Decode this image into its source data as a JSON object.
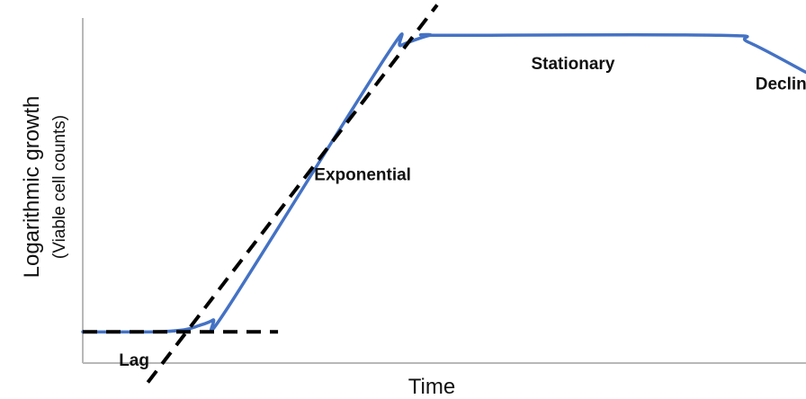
{
  "chart_data": {
    "type": "line",
    "xlabel": "Time",
    "ylabel": "Logarithmic growth",
    "ylabel_sub": "(Viable cell counts)",
    "grid": false,
    "legend": "none",
    "axis_ticks": false,
    "curve_color": "#4472C4",
    "tangent_color": "#000000",
    "series": [
      {
        "x": [
          0,
          0.1,
          0.14,
          0.16,
          0.18,
          0.2,
          0.42,
          0.44,
          0.48,
          0.5,
          0.88,
          0.92,
          1.0
        ],
        "y": [
          0.05,
          0.05,
          0.056,
          0.068,
          0.085,
          0.12,
          0.87,
          0.9,
          0.93,
          0.93,
          0.93,
          0.91,
          0.82
        ]
      }
    ],
    "tangent_lines": [
      {
        "x": [
          0,
          0.27
        ],
        "y": [
          0.05,
          0.05
        ]
      },
      {
        "x": [
          0.09,
          0.49
        ],
        "y": [
          -0.1,
          1.02
        ]
      }
    ],
    "phases": [
      {
        "label": "Lag",
        "x": 0.05,
        "y": -0.05
      },
      {
        "label": "Exponential",
        "x": 0.32,
        "y": 0.5
      },
      {
        "label": "Stationary",
        "x": 0.62,
        "y": 0.83
      },
      {
        "label": "Decline",
        "x": 0.93,
        "y": 0.77
      }
    ]
  }
}
